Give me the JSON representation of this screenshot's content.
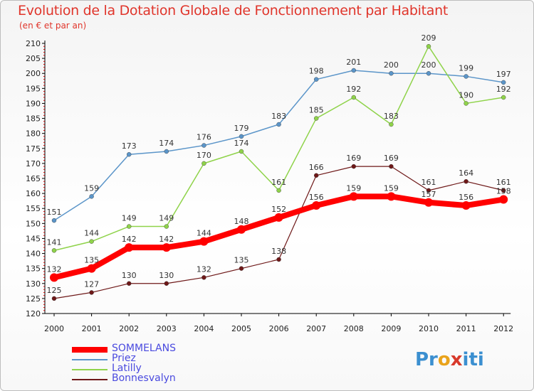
{
  "title": "Evolution de la Dotation Globale de Fonctionnement par Habitant",
  "subtitle": "(en € et par an)",
  "logo": {
    "p": "Pr",
    "o": "o",
    "x": "x",
    "i": "iti"
  },
  "colors": {
    "title": "#e0352b",
    "axis": "#000000",
    "tick": "#cc0000",
    "label": "#333333"
  },
  "chart_data": {
    "type": "line",
    "x": [
      "2000",
      "2001",
      "2002",
      "2003",
      "2004",
      "2005",
      "2006",
      "2007",
      "2008",
      "2009",
      "2010",
      "2011",
      "2012"
    ],
    "ylim": [
      120,
      210
    ],
    "yticks": [
      120,
      125,
      130,
      135,
      140,
      145,
      150,
      155,
      160,
      165,
      170,
      175,
      180,
      185,
      190,
      195,
      200,
      205,
      210
    ],
    "grid": false,
    "legend_position": "bottom-left",
    "series": [
      {
        "name": "Priez",
        "color": "#5b95c9",
        "width": 1.5,
        "marker": 3,
        "values": [
          151,
          159,
          173,
          174,
          176,
          179,
          183,
          198,
          201,
          200,
          200,
          199,
          197
        ]
      },
      {
        "name": "Latilly",
        "color": "#8fd34a",
        "width": 1.5,
        "marker": 3,
        "values": [
          141,
          144,
          149,
          149,
          170,
          174,
          161,
          185,
          192,
          183,
          209,
          190,
          192
        ]
      },
      {
        "name": "Bonnesvalyn",
        "color": "#6e1818",
        "width": 1.2,
        "marker": 3,
        "values": [
          125,
          127,
          130,
          130,
          132,
          135,
          138,
          166,
          169,
          169,
          161,
          164,
          161
        ]
      },
      {
        "name": "SOMMELANS",
        "color": "#ff0000",
        "width": 8,
        "marker": 6,
        "values": [
          132,
          135,
          142,
          142,
          144,
          148,
          152,
          156,
          159,
          159,
          157,
          156,
          158
        ]
      }
    ],
    "legend_order": [
      "SOMMELANS",
      "Priez",
      "Latilly",
      "Bonnesvalyn"
    ]
  }
}
